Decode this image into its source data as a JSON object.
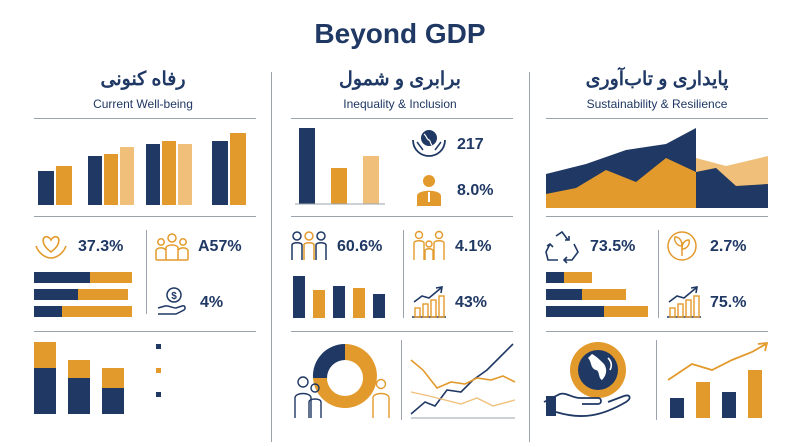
{
  "title": "Beyond GDP",
  "colors": {
    "navy": "#1f3864",
    "orange": "#e39a2c",
    "light_orange": "#f0c07a",
    "gray": "#9aa3ad"
  },
  "columns": [
    {
      "title_fa": "رفاه کنونی",
      "title_en": "Current Well-being",
      "stats": [
        {
          "icon": "heart-hands-icon",
          "value": "37.3%"
        },
        {
          "icon": "people-group-icon",
          "value": "A57%"
        },
        {
          "icon": "coin-hand-icon",
          "value": "4%"
        }
      ]
    },
    {
      "title_fa": "برابری و شمول",
      "title_en": "Inequality & Inclusion",
      "stats": [
        {
          "icon": "globe-hands-icon",
          "value": "217"
        },
        {
          "icon": "person-icon",
          "value": "8.0%"
        },
        {
          "icon": "people-group-icon",
          "value": "60.6%"
        },
        {
          "icon": "family-icon",
          "value": "4.1%"
        },
        {
          "icon": "growth-chart-icon",
          "value": "43%"
        }
      ]
    },
    {
      "title_fa": "پایداری و تاب‌آوری",
      "title_en": "Sustainability & Resilience",
      "stats": [
        {
          "icon": "recycle-icon",
          "value": "73.5%"
        },
        {
          "icon": "leaf-icon",
          "value": "2.7%"
        },
        {
          "icon": "growth-chart-icon",
          "value": "75.%"
        }
      ]
    }
  ]
}
